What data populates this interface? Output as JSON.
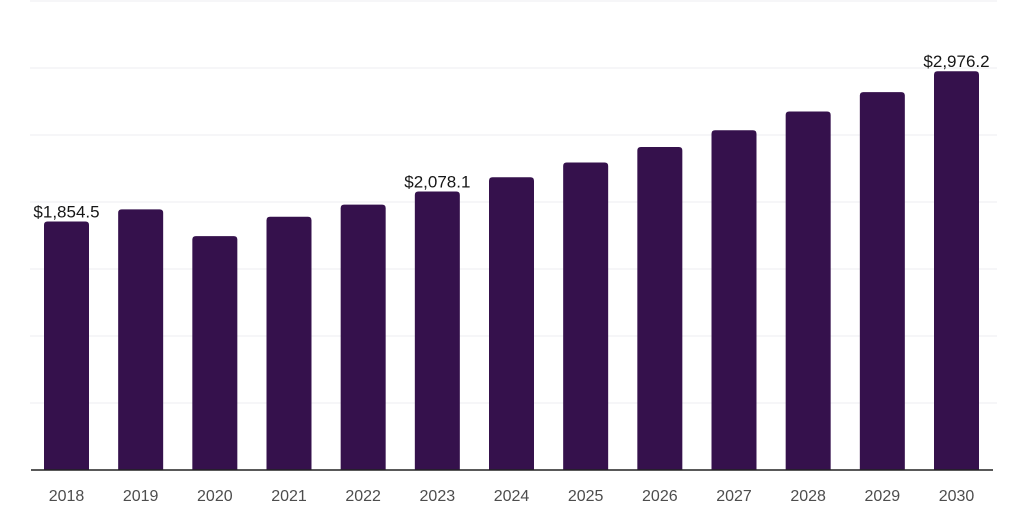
{
  "chart_data": {
    "type": "bar",
    "title": "",
    "xlabel": "",
    "ylabel": "",
    "categories": [
      "2018",
      "2019",
      "2020",
      "2021",
      "2022",
      "2023",
      "2024",
      "2025",
      "2026",
      "2027",
      "2028",
      "2029",
      "2030"
    ],
    "values": [
      1854.5,
      1945,
      1745,
      1890,
      1980,
      2078.1,
      2185,
      2295,
      2410,
      2535,
      2675,
      2820,
      2976.2
    ],
    "value_labels": {
      "2018": "$1,854.5",
      "2023": "$2,078.1",
      "2030": "$2,976.2"
    },
    "ylim": [
      0,
      3500
    ],
    "gridline_step": 500,
    "grid": "horizontal",
    "legend": "none",
    "colors": {
      "bar": "#35114c",
      "gridline": "#f1f1f3",
      "axis": "#222222",
      "tick_label": "#4d4d4d",
      "value_label": "#161616",
      "background": "#ffffff"
    }
  }
}
